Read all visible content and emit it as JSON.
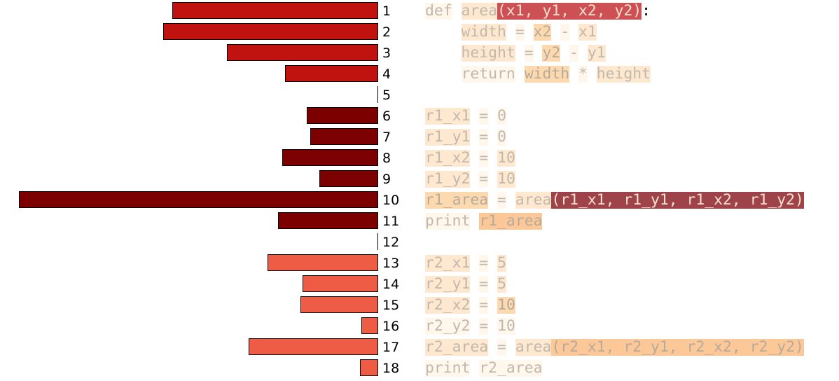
{
  "colors": {
    "bar_group_1": "#c0130f",
    "bar_group_2": "#7c0000",
    "bar_group_3": "#ee5c45",
    "bar_outline": "#000000",
    "text_default": "#c2b8ac",
    "punct_plain": "#000000",
    "highlight_levels": {
      "faint": "#fff6ec",
      "light": "#fee8cf",
      "medium": "#fdd9b0",
      "strong": "#fdc898",
      "red": "#cd5154",
      "dark": "#9e4349"
    },
    "text_on_levels": {
      "faint": "#c2b8ac",
      "light": "#c2b8ac",
      "medium": "#b7aa9a",
      "strong": "#b7aa9a",
      "red": "#fbe0d0",
      "dark": "#fbe0d0"
    }
  },
  "lines": [
    {
      "number": "1",
      "bar": 294,
      "group": 1,
      "tokens": [
        {
          "text": "def",
          "hl": "faint"
        },
        {
          "text": " "
        },
        {
          "text": "area",
          "hl": "light"
        },
        {
          "text": "(x1, y1, x2, y2)",
          "hl": "red"
        },
        {
          "text": ":",
          "plain": true
        }
      ]
    },
    {
      "number": "2",
      "bar": 307,
      "group": 1,
      "tokens": [
        {
          "text": "    "
        },
        {
          "text": "width",
          "hl": "light"
        },
        {
          "text": " "
        },
        {
          "text": "=",
          "hl": "faint"
        },
        {
          "text": " "
        },
        {
          "text": "x2",
          "hl": "medium"
        },
        {
          "text": " "
        },
        {
          "text": "-",
          "hl": "faint"
        },
        {
          "text": " "
        },
        {
          "text": "x1",
          "hl": "light"
        }
      ]
    },
    {
      "number": "3",
      "bar": 216,
      "group": 1,
      "tokens": [
        {
          "text": "    "
        },
        {
          "text": "height",
          "hl": "light"
        },
        {
          "text": " "
        },
        {
          "text": "=",
          "hl": "faint"
        },
        {
          "text": " "
        },
        {
          "text": "y2",
          "hl": "medium"
        },
        {
          "text": " "
        },
        {
          "text": "-",
          "hl": "faint"
        },
        {
          "text": " "
        },
        {
          "text": "y1",
          "hl": "light"
        }
      ]
    },
    {
      "number": "4",
      "bar": 133,
      "group": 1,
      "tokens": [
        {
          "text": "    "
        },
        {
          "text": "return",
          "hl": "faint"
        },
        {
          "text": " "
        },
        {
          "text": "width",
          "hl": "medium"
        },
        {
          "text": " "
        },
        {
          "text": "*",
          "hl": "faint"
        },
        {
          "text": " "
        },
        {
          "text": "height",
          "hl": "light"
        }
      ]
    },
    {
      "number": "5",
      "bar": 0,
      "group": 1,
      "tokens": []
    },
    {
      "number": "6",
      "bar": 102,
      "group": 2,
      "tokens": [
        {
          "text": "r1_x1",
          "hl": "light"
        },
        {
          "text": " "
        },
        {
          "text": "=",
          "hl": "faint"
        },
        {
          "text": " "
        },
        {
          "text": "0",
          "hl": "faint"
        }
      ]
    },
    {
      "number": "7",
      "bar": 97,
      "group": 2,
      "tokens": [
        {
          "text": "r1_y1",
          "hl": "light"
        },
        {
          "text": " "
        },
        {
          "text": "=",
          "hl": "faint"
        },
        {
          "text": " "
        },
        {
          "text": "0",
          "hl": "faint"
        }
      ]
    },
    {
      "number": "8",
      "bar": 137,
      "group": 2,
      "tokens": [
        {
          "text": "r1_x2",
          "hl": "light"
        },
        {
          "text": " "
        },
        {
          "text": "=",
          "hl": "faint"
        },
        {
          "text": " "
        },
        {
          "text": "10",
          "hl": "light"
        }
      ]
    },
    {
      "number": "9",
      "bar": 84,
      "group": 2,
      "tokens": [
        {
          "text": "r1_y2",
          "hl": "light"
        },
        {
          "text": " "
        },
        {
          "text": "=",
          "hl": "faint"
        },
        {
          "text": " "
        },
        {
          "text": "10",
          "hl": "light"
        }
      ]
    },
    {
      "number": "10",
      "bar": 513,
      "group": 2,
      "tokens": [
        {
          "text": "r1_area",
          "hl": "medium"
        },
        {
          "text": " "
        },
        {
          "text": "=",
          "hl": "faint"
        },
        {
          "text": " "
        },
        {
          "text": "area",
          "hl": "light"
        },
        {
          "text": "(r1_x1, r1_y1, r1_x2, r1_y2)",
          "hl": "dark"
        }
      ]
    },
    {
      "number": "11",
      "bar": 143,
      "group": 2,
      "tokens": [
        {
          "text": "print",
          "hl": "faint"
        },
        {
          "text": " "
        },
        {
          "text": "r1_area",
          "hl": "strong"
        }
      ]
    },
    {
      "number": "12",
      "bar": 0,
      "group": 2,
      "tokens": []
    },
    {
      "number": "13",
      "bar": 158,
      "group": 3,
      "tokens": [
        {
          "text": "r2_x1",
          "hl": "light"
        },
        {
          "text": " "
        },
        {
          "text": "=",
          "hl": "faint"
        },
        {
          "text": " "
        },
        {
          "text": "5",
          "hl": "light"
        }
      ]
    },
    {
      "number": "14",
      "bar": 108,
      "group": 3,
      "tokens": [
        {
          "text": "r2_y1",
          "hl": "light"
        },
        {
          "text": " "
        },
        {
          "text": "=",
          "hl": "faint"
        },
        {
          "text": " "
        },
        {
          "text": "5",
          "hl": "light"
        }
      ]
    },
    {
      "number": "15",
      "bar": 111,
      "group": 3,
      "tokens": [
        {
          "text": "r2_x2",
          "hl": "light"
        },
        {
          "text": " "
        },
        {
          "text": "=",
          "hl": "faint"
        },
        {
          "text": " "
        },
        {
          "text": "10",
          "hl": "medium"
        }
      ]
    },
    {
      "number": "16",
      "bar": 24,
      "group": 3,
      "tokens": [
        {
          "text": "r2_y2",
          "hl": "faint"
        },
        {
          "text": " "
        },
        {
          "text": "=",
          "hl": "faint"
        },
        {
          "text": " "
        },
        {
          "text": "10",
          "hl": "faint"
        }
      ]
    },
    {
      "number": "17",
      "bar": 185,
      "group": 3,
      "tokens": [
        {
          "text": "r2_area",
          "hl": "light"
        },
        {
          "text": " "
        },
        {
          "text": "=",
          "hl": "faint"
        },
        {
          "text": " "
        },
        {
          "text": "area",
          "hl": "light"
        },
        {
          "text": "(r2_x1, r2_y1, r2_x2, r2_y2)",
          "hl": "strong"
        }
      ]
    },
    {
      "number": "18",
      "bar": 26,
      "group": 3,
      "tokens": [
        {
          "text": "print",
          "hl": "faint"
        },
        {
          "text": " "
        },
        {
          "text": "r2_area",
          "hl": "faint"
        }
      ]
    }
  ]
}
